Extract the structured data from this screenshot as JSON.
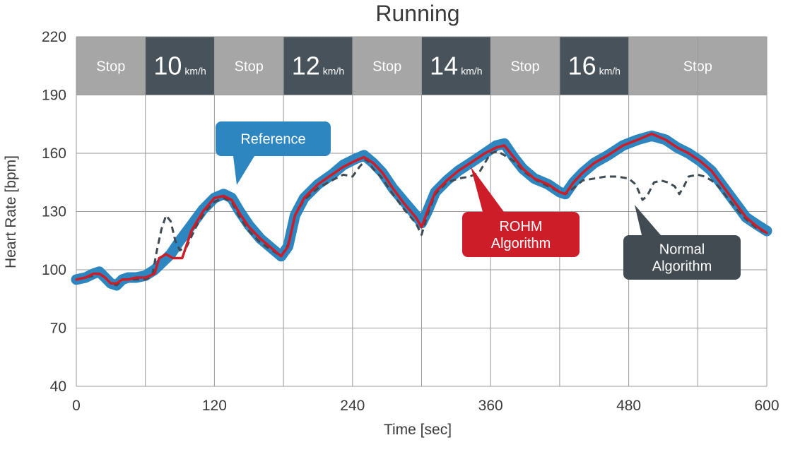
{
  "chart_data": {
    "type": "line",
    "title": "Running",
    "xlabel": "Time [sec]",
    "ylabel": "Heart Rate [bpm]",
    "xlim": [
      0,
      600
    ],
    "ylim": [
      40,
      220
    ],
    "x_ticks": [
      "0",
      "120",
      "240",
      "360",
      "480",
      "600"
    ],
    "y_ticks": [
      "40",
      "70",
      "100",
      "130",
      "160",
      "190",
      "220"
    ],
    "grid": true,
    "phases": [
      {
        "start": 0,
        "end": 60,
        "label": "Stop",
        "speed": "",
        "unit": "",
        "color": "#a6a6a6"
      },
      {
        "start": 60,
        "end": 120,
        "label": "",
        "speed": "10",
        "unit": "km/h",
        "color": "#48525a"
      },
      {
        "start": 120,
        "end": 180,
        "label": "Stop",
        "speed": "",
        "unit": "",
        "color": "#a6a6a6"
      },
      {
        "start": 180,
        "end": 240,
        "label": "",
        "speed": "12",
        "unit": "km/h",
        "color": "#48525a"
      },
      {
        "start": 240,
        "end": 300,
        "label": "Stop",
        "speed": "",
        "unit": "",
        "color": "#a6a6a6"
      },
      {
        "start": 300,
        "end": 360,
        "label": "",
        "speed": "14",
        "unit": "km/h",
        "color": "#48525a"
      },
      {
        "start": 360,
        "end": 420,
        "label": "Stop",
        "speed": "",
        "unit": "",
        "color": "#a6a6a6"
      },
      {
        "start": 420,
        "end": 480,
        "label": "",
        "speed": "16",
        "unit": "km/h",
        "color": "#48525a"
      },
      {
        "start": 480,
        "end": 600,
        "label": "Stop",
        "speed": "",
        "unit": "",
        "color": "#a6a6a6"
      }
    ],
    "series": [
      {
        "name": "Reference",
        "color": "#2e86c1",
        "style": "thick",
        "points": [
          [
            0,
            95
          ],
          [
            8,
            96
          ],
          [
            15,
            98
          ],
          [
            20,
            99
          ],
          [
            25,
            96
          ],
          [
            30,
            93
          ],
          [
            35,
            92
          ],
          [
            40,
            95
          ],
          [
            45,
            96
          ],
          [
            52,
            96
          ],
          [
            60,
            97
          ],
          [
            68,
            100
          ],
          [
            75,
            104
          ],
          [
            82,
            108
          ],
          [
            90,
            115
          ],
          [
            100,
            123
          ],
          [
            110,
            131
          ],
          [
            120,
            137
          ],
          [
            128,
            139
          ],
          [
            135,
            137
          ],
          [
            142,
            130
          ],
          [
            150,
            123
          ],
          [
            160,
            116
          ],
          [
            170,
            111
          ],
          [
            178,
            107
          ],
          [
            184,
            112
          ],
          [
            190,
            128
          ],
          [
            198,
            137
          ],
          [
            210,
            144
          ],
          [
            222,
            149
          ],
          [
            232,
            154
          ],
          [
            242,
            157
          ],
          [
            250,
            159
          ],
          [
            258,
            155
          ],
          [
            266,
            150
          ],
          [
            275,
            142
          ],
          [
            285,
            135
          ],
          [
            295,
            128
          ],
          [
            300,
            124
          ],
          [
            305,
            130
          ],
          [
            312,
            140
          ],
          [
            322,
            146
          ],
          [
            332,
            151
          ],
          [
            345,
            156
          ],
          [
            355,
            160
          ],
          [
            365,
            164
          ],
          [
            372,
            165
          ],
          [
            380,
            158
          ],
          [
            388,
            152
          ],
          [
            398,
            147
          ],
          [
            410,
            144
          ],
          [
            420,
            140
          ],
          [
            425,
            139
          ],
          [
            432,
            145
          ],
          [
            440,
            150
          ],
          [
            450,
            155
          ],
          [
            462,
            159
          ],
          [
            475,
            164
          ],
          [
            488,
            167
          ],
          [
            500,
            169
          ],
          [
            512,
            167
          ],
          [
            522,
            163
          ],
          [
            532,
            160
          ],
          [
            542,
            156
          ],
          [
            552,
            151
          ],
          [
            562,
            143
          ],
          [
            572,
            135
          ],
          [
            582,
            127
          ],
          [
            592,
            123
          ],
          [
            600,
            120
          ]
        ]
      },
      {
        "name": "ROHM Algorithm",
        "color": "#cc1d29",
        "style": "solid",
        "points": [
          [
            0,
            95
          ],
          [
            8,
            96
          ],
          [
            15,
            98
          ],
          [
            20,
            98
          ],
          [
            25,
            96
          ],
          [
            30,
            93
          ],
          [
            35,
            93
          ],
          [
            40,
            95
          ],
          [
            45,
            95
          ],
          [
            52,
            96
          ],
          [
            60,
            96
          ],
          [
            68,
            98
          ],
          [
            72,
            106
          ],
          [
            78,
            108
          ],
          [
            84,
            106
          ],
          [
            92,
            106
          ],
          [
            100,
            120
          ],
          [
            110,
            130
          ],
          [
            120,
            137
          ],
          [
            128,
            138
          ],
          [
            135,
            136
          ],
          [
            142,
            129
          ],
          [
            150,
            122
          ],
          [
            160,
            116
          ],
          [
            170,
            111
          ],
          [
            178,
            107
          ],
          [
            184,
            112
          ],
          [
            190,
            128
          ],
          [
            198,
            137
          ],
          [
            210,
            144
          ],
          [
            222,
            149
          ],
          [
            232,
            153
          ],
          [
            242,
            156
          ],
          [
            250,
            158
          ],
          [
            258,
            155
          ],
          [
            266,
            150
          ],
          [
            275,
            142
          ],
          [
            285,
            134
          ],
          [
            295,
            127
          ],
          [
            300,
            122
          ],
          [
            305,
            130
          ],
          [
            312,
            140
          ],
          [
            322,
            146
          ],
          [
            332,
            151
          ],
          [
            345,
            156
          ],
          [
            355,
            160
          ],
          [
            365,
            163
          ],
          [
            372,
            164
          ],
          [
            380,
            158
          ],
          [
            388,
            152
          ],
          [
            398,
            147
          ],
          [
            410,
            144
          ],
          [
            420,
            140
          ],
          [
            425,
            139
          ],
          [
            432,
            145
          ],
          [
            440,
            150
          ],
          [
            450,
            155
          ],
          [
            462,
            159
          ],
          [
            475,
            164
          ],
          [
            488,
            167
          ],
          [
            500,
            170
          ],
          [
            512,
            167
          ],
          [
            522,
            163
          ],
          [
            532,
            160
          ],
          [
            542,
            156
          ],
          [
            552,
            151
          ],
          [
            562,
            143
          ],
          [
            572,
            135
          ],
          [
            582,
            127
          ],
          [
            592,
            122
          ],
          [
            600,
            119
          ]
        ]
      },
      {
        "name": "Normal Algorithm",
        "color": "#3f4a52",
        "style": "dashed",
        "points": [
          [
            0,
            95
          ],
          [
            8,
            96
          ],
          [
            15,
            97
          ],
          [
            20,
            98
          ],
          [
            25,
            96
          ],
          [
            30,
            93
          ],
          [
            35,
            92
          ],
          [
            40,
            95
          ],
          [
            45,
            95
          ],
          [
            52,
            95
          ],
          [
            60,
            95
          ],
          [
            66,
            97
          ],
          [
            70,
            110
          ],
          [
            74,
            121
          ],
          [
            78,
            128
          ],
          [
            82,
            125
          ],
          [
            86,
            115
          ],
          [
            90,
            110
          ],
          [
            96,
            112
          ],
          [
            104,
            122
          ],
          [
            112,
            130
          ],
          [
            120,
            135
          ],
          [
            128,
            137
          ],
          [
            135,
            135
          ],
          [
            142,
            127
          ],
          [
            150,
            120
          ],
          [
            160,
            114
          ],
          [
            170,
            110
          ],
          [
            178,
            107
          ],
          [
            184,
            113
          ],
          [
            190,
            128
          ],
          [
            198,
            136
          ],
          [
            210,
            142
          ],
          [
            222,
            146
          ],
          [
            232,
            149
          ],
          [
            240,
            148
          ],
          [
            246,
            153
          ],
          [
            252,
            157
          ],
          [
            258,
            152
          ],
          [
            266,
            147
          ],
          [
            275,
            139
          ],
          [
            285,
            131
          ],
          [
            295,
            124
          ],
          [
            300,
            118
          ],
          [
            305,
            128
          ],
          [
            312,
            139
          ],
          [
            322,
            145
          ],
          [
            332,
            147
          ],
          [
            342,
            148
          ],
          [
            350,
            150
          ],
          [
            356,
            156
          ],
          [
            360,
            160
          ],
          [
            366,
            161
          ],
          [
            372,
            159
          ],
          [
            380,
            156
          ],
          [
            390,
            150
          ],
          [
            400,
            146
          ],
          [
            410,
            143
          ],
          [
            420,
            140
          ],
          [
            425,
            139
          ],
          [
            432,
            142
          ],
          [
            440,
            146
          ],
          [
            450,
            147
          ],
          [
            460,
            148
          ],
          [
            470,
            148
          ],
          [
            480,
            147
          ],
          [
            486,
            144
          ],
          [
            492,
            136
          ],
          [
            496,
            138
          ],
          [
            502,
            145
          ],
          [
            508,
            146
          ],
          [
            514,
            145
          ],
          [
            520,
            143
          ],
          [
            524,
            139
          ],
          [
            528,
            143
          ],
          [
            532,
            148
          ],
          [
            540,
            149
          ],
          [
            546,
            148
          ],
          [
            552,
            146
          ],
          [
            558,
            143
          ],
          [
            566,
            137
          ],
          [
            574,
            131
          ],
          [
            582,
            126
          ],
          [
            592,
            121
          ],
          [
            600,
            119
          ]
        ]
      }
    ],
    "callouts": [
      {
        "series": "Reference",
        "lines": [
          "Reference"
        ],
        "color": "#2e86c1"
      },
      {
        "series": "ROHM Algorithm",
        "lines": [
          "ROHM",
          "Algorithm"
        ],
        "color": "#cc1d29"
      },
      {
        "series": "Normal Algorithm",
        "lines": [
          "Normal",
          "Algorithm"
        ],
        "color": "#434b52"
      }
    ]
  }
}
